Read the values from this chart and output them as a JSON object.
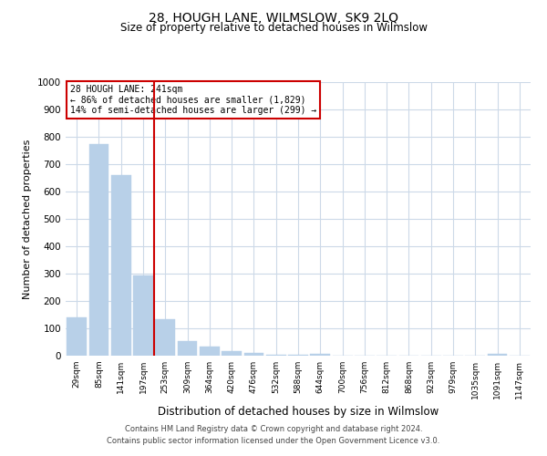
{
  "title": "28, HOUGH LANE, WILMSLOW, SK9 2LQ",
  "subtitle": "Size of property relative to detached houses in Wilmslow",
  "xlabel": "Distribution of detached houses by size in Wilmslow",
  "ylabel": "Number of detached properties",
  "bin_labels": [
    "29sqm",
    "85sqm",
    "141sqm",
    "197sqm",
    "253sqm",
    "309sqm",
    "364sqm",
    "420sqm",
    "476sqm",
    "532sqm",
    "588sqm",
    "644sqm",
    "700sqm",
    "756sqm",
    "812sqm",
    "868sqm",
    "923sqm",
    "979sqm",
    "1035sqm",
    "1091sqm",
    "1147sqm"
  ],
  "bar_heights": [
    140,
    775,
    660,
    295,
    135,
    55,
    33,
    18,
    10,
    5,
    2,
    8,
    0,
    0,
    0,
    0,
    0,
    0,
    0,
    8,
    0
  ],
  "bar_color": "#b8d0e8",
  "bar_edge_color": "#b8d0e8",
  "vline_color": "#cc0000",
  "annotation_title": "28 HOUGH LANE: 241sqm",
  "annotation_line1": "← 86% of detached houses are smaller (1,829)",
  "annotation_line2": "14% of semi-detached houses are larger (299) →",
  "annotation_box_color": "#cc0000",
  "ylim": [
    0,
    1000
  ],
  "yticks": [
    0,
    100,
    200,
    300,
    400,
    500,
    600,
    700,
    800,
    900,
    1000
  ],
  "footnote1": "Contains HM Land Registry data © Crown copyright and database right 2024.",
  "footnote2": "Contains public sector information licensed under the Open Government Licence v3.0.",
  "grid_color": "#ccd9e8",
  "background_color": "#ffffff",
  "fig_width": 6.0,
  "fig_height": 5.0
}
